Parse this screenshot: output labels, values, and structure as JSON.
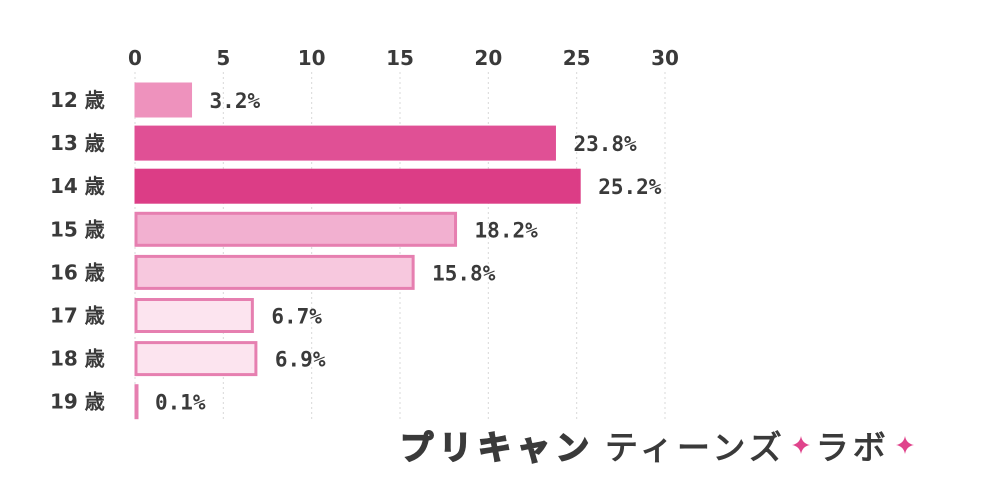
{
  "chart_data": {
    "type": "bar",
    "orientation": "horizontal",
    "categories": [
      "12 歳",
      "13 歳",
      "14 歳",
      "15 歳",
      "16 歳",
      "17 歳",
      "18 歳",
      "19 歳"
    ],
    "values": [
      3.2,
      23.8,
      25.2,
      18.2,
      15.8,
      6.7,
      6.9,
      0.1
    ],
    "value_labels": [
      "3.2%",
      "23.8%",
      "25.2%",
      "18.2%",
      "15.8%",
      "6.7%",
      "6.9%",
      "0.1%"
    ],
    "xlim": [
      0,
      30
    ],
    "x_ticks": [
      "0",
      "5",
      "10",
      "15",
      "20",
      "25",
      "30"
    ],
    "x_axis_position": "top",
    "grid": true,
    "bar_colors": [
      {
        "fill": "#ee92bd",
        "stroke": "#ee92bd"
      },
      {
        "fill": "#e05095",
        "stroke": "#e05095"
      },
      {
        "fill": "#dc3d86",
        "stroke": "#dc3d86"
      },
      {
        "fill": "#f2b0d0",
        "stroke": "#e67fb0"
      },
      {
        "fill": "#f7c8de",
        "stroke": "#e67fb0"
      },
      {
        "fill": "#fce4ef",
        "stroke": "#e67fb0"
      },
      {
        "fill": "#fce4ef",
        "stroke": "#e67fb0"
      },
      {
        "fill": "#fce4ef",
        "stroke": "#e67fb0"
      }
    ]
  },
  "brand": {
    "part1": "プリキャン",
    "part2": "ティーンズ",
    "part3": "ラボ",
    "sparkle_color": "#e0448c",
    "sparkle_icon": "sparkle-icon"
  }
}
